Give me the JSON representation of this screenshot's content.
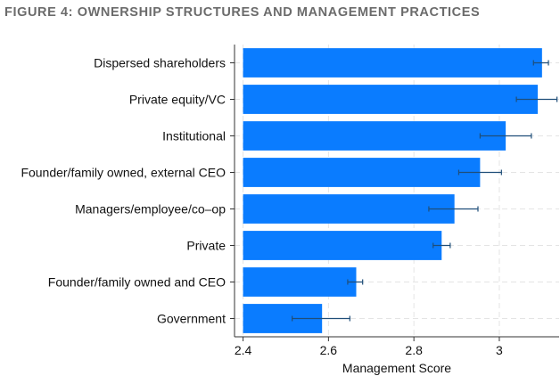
{
  "figure": {
    "title": "FIGURE 4: OWNERSHIP STRUCTURES AND MANAGEMENT PRACTICES"
  },
  "colors": {
    "bar": "#0a7cff",
    "error_bar": "#1f4e79",
    "grid": "#e4e4e4",
    "title": "#6b6b6b"
  },
  "chart_data": {
    "type": "bar",
    "orientation": "horizontal",
    "categories": [
      "Dispersed shareholders",
      "Private equity/VC",
      "Institutional",
      "Founder/family owned, external CEO",
      "Managers/employee/co–op",
      "Private",
      "Founder/family owned and CEO",
      "Government"
    ],
    "values": [
      3.1,
      3.09,
      3.015,
      2.955,
      2.895,
      2.865,
      2.665,
      2.585
    ],
    "error_low": [
      3.08,
      3.04,
      2.955,
      2.905,
      2.835,
      2.845,
      2.645,
      2.515
    ],
    "error_high": [
      3.115,
      3.135,
      3.075,
      3.005,
      2.95,
      2.885,
      2.68,
      2.65
    ],
    "xlabel": "Management Score",
    "ylabel": "",
    "xlim": [
      2.38,
      3.14
    ],
    "xticks": [
      2.4,
      2.6,
      2.8,
      3
    ],
    "xtick_labels": [
      "2.4",
      "2.6",
      "2.8",
      "3"
    ],
    "bar_base": 2.4,
    "grid": true,
    "legend": "none"
  }
}
